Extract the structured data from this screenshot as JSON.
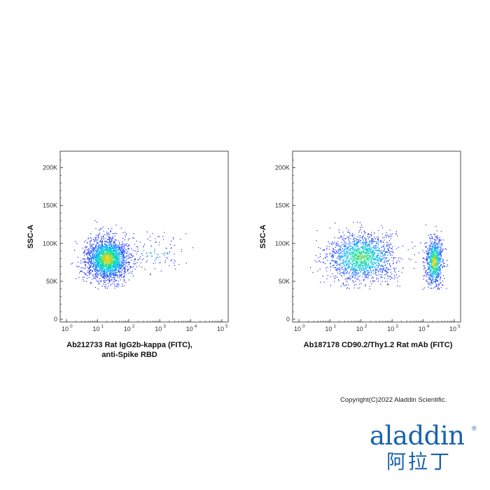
{
  "chart_data": [
    {
      "type": "scatter",
      "title": "",
      "xlabel": "Ab212733 Rat IgG2b-kappa (FITC),",
      "xlabel_line2": "anti-Spike RBD",
      "ylabel": "SSC-A",
      "x_scale": "log",
      "xlim": [
        1,
        100000
      ],
      "ylim": [
        0,
        220000
      ],
      "y_ticks": [
        0,
        50000,
        100000,
        150000,
        200000
      ],
      "y_tick_labels": [
        "0",
        "50K",
        "100K",
        "150K",
        "200K"
      ],
      "x_tick_bases": [
        "10",
        "10",
        "10",
        "10",
        "10",
        "10"
      ],
      "x_tick_exps": [
        "0",
        "1",
        "2",
        "3",
        "4",
        "5"
      ],
      "x_ticks": [
        1,
        10,
        100,
        1000,
        10000,
        100000
      ],
      "grid": false,
      "colormap": [
        "#1a1aff",
        "#00b4ff",
        "#00e0a0",
        "#ffd000"
      ],
      "populations": [
        {
          "x_center": 20,
          "y_center": 80000,
          "x_spread_decades": 0.34,
          "y_spread": 14000,
          "count": 2400,
          "density_peak": "high"
        },
        {
          "x_center": 700,
          "y_center": 88000,
          "x_spread_decades": 0.5,
          "y_spread": 12000,
          "count": 110,
          "density_peak": "low"
        }
      ]
    },
    {
      "type": "scatter",
      "title": "",
      "xlabel": "Ab187178 CD90.2/Thy1.2 Rat mAb (FITC)",
      "ylabel": "SSC-A",
      "x_scale": "log",
      "xlim": [
        1,
        100000
      ],
      "ylim": [
        0,
        220000
      ],
      "y_ticks": [
        0,
        50000,
        100000,
        150000,
        200000
      ],
      "y_tick_labels": [
        "0",
        "50K",
        "100K",
        "150K",
        "200K"
      ],
      "x_tick_bases": [
        "10",
        "10",
        "10",
        "10",
        "10",
        "10"
      ],
      "x_tick_exps": [
        "0",
        "1",
        "2",
        "3",
        "4",
        "5"
      ],
      "x_ticks": [
        1,
        10,
        100,
        1000,
        10000,
        100000
      ],
      "grid": false,
      "colormap": [
        "#1a1aff",
        "#00b4ff",
        "#00e0a0",
        "#ffd000"
      ],
      "populations": [
        {
          "x_center": 100,
          "y_center": 82000,
          "x_spread_decades": 0.55,
          "y_spread": 16000,
          "count": 1700,
          "density_peak": "medium"
        },
        {
          "x_center": 22000,
          "y_center": 76000,
          "x_spread_decades": 0.14,
          "y_spread": 16000,
          "count": 900,
          "density_peak": "high"
        }
      ]
    }
  ],
  "copyright": "Copyright(C)2022 Aladdin Scientific.",
  "logo": {
    "latin": "aladdin",
    "cjk": "阿拉丁",
    "registered_mark": "®",
    "color": "#1a62b0"
  }
}
